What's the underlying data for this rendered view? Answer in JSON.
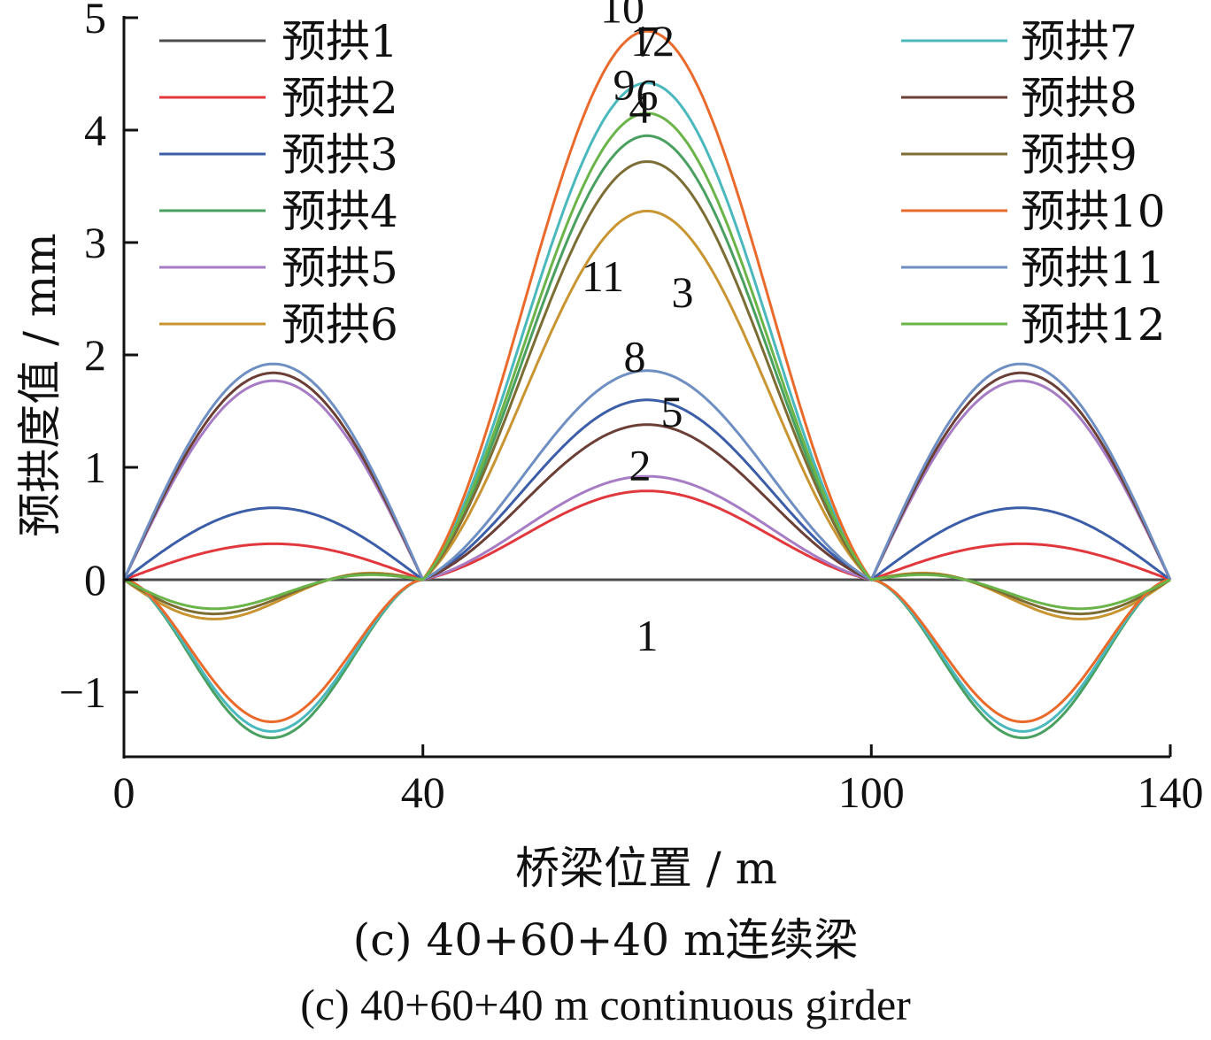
{
  "chart_data": {
    "type": "line",
    "xlabel": "桥梁位置 / m",
    "ylabel": "预拱度值 / mm",
    "xlim": [
      0,
      140
    ],
    "ylim": [
      -1.6,
      5
    ],
    "x_ticks": [
      0,
      40,
      100,
      140
    ],
    "x_tick_labels": [
      "0",
      "40",
      "100",
      "140"
    ],
    "y_ticks": [
      -1,
      0,
      1,
      2,
      3,
      4,
      5
    ],
    "y_tick_labels": [
      "−1",
      "0",
      "1",
      "2",
      "3",
      "4",
      "5"
    ],
    "grid": false,
    "legend_placement": "top-left and top-right",
    "span_breaks": [
      0,
      40,
      100,
      140
    ],
    "series": [
      {
        "name": "预拱1",
        "label": "1",
        "color": "#4d4d4d",
        "side_peak": 0,
        "middle_peak": 0,
        "shape": "flat"
      },
      {
        "name": "预拱2",
        "label": "2",
        "color": "#e0383d",
        "side_peak": 0.32,
        "middle_peak": 0.79,
        "shape": "positive"
      },
      {
        "name": "预拱3",
        "label": "3",
        "color": "#3c5ea8",
        "side_peak": 0.64,
        "middle_peak": 1.6,
        "shape": "positive"
      },
      {
        "name": "预拱4",
        "label": "4",
        "color": "#4aa060",
        "side_peak": -1.48,
        "middle_peak": 3.95,
        "shape": "negative"
      },
      {
        "name": "预拱5",
        "label": "5",
        "color": "#a67cc4",
        "side_peak": 1.77,
        "middle_peak": 0.92,
        "shape": "positive"
      },
      {
        "name": "预拱6",
        "label": "6",
        "color": "#c99532",
        "side_peak": -0.38,
        "middle_peak": 3.28,
        "shape": "wave"
      },
      {
        "name": "预拱7",
        "label": "7",
        "color": "#4ab8bd",
        "side_peak": -1.42,
        "middle_peak": 4.42,
        "shape": "negative"
      },
      {
        "name": "预拱8",
        "label": "8",
        "color": "#6b3f36",
        "side_peak": 1.84,
        "middle_peak": 1.38,
        "shape": "positive"
      },
      {
        "name": "预拱9",
        "label": "9",
        "color": "#7c6d35",
        "side_peak": -0.33,
        "middle_peak": 3.72,
        "shape": "wave"
      },
      {
        "name": "预拱10",
        "label": "10",
        "color": "#ea6a2c",
        "side_peak": -1.33,
        "middle_peak": 4.88,
        "shape": "negative"
      },
      {
        "name": "预拱11",
        "label": "11",
        "color": "#6f8fc3",
        "side_peak": 1.92,
        "middle_peak": 1.86,
        "shape": "positive"
      },
      {
        "name": "预拱12",
        "label": "12",
        "color": "#6ab44a",
        "side_peak": -0.28,
        "middle_peak": 4.15,
        "shape": "wave"
      }
    ]
  },
  "caption": {
    "cn": "(c) 40+60+40 m连续梁",
    "en": "(c) 40+60+40 m continuous girder"
  }
}
